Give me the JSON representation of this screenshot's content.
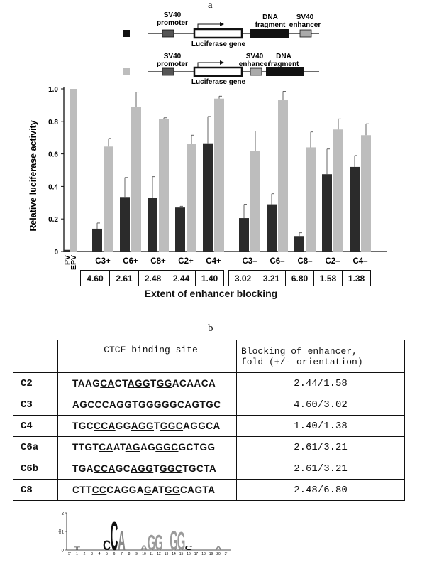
{
  "figure": {
    "panel_a_label": "a",
    "panel_b_label": "b"
  },
  "constructs": {
    "top": {
      "promoter": [
        "SV40",
        "promoter"
      ],
      "gene": "Luciferase gene",
      "fragment": [
        "DNA",
        "fragment"
      ],
      "enhancer": [
        "SV40",
        "enhancer"
      ],
      "legend_color": "#222222"
    },
    "bottom": {
      "promoter": [
        "SV40",
        "promoter"
      ],
      "gene": "Luciferase gene",
      "enhancer": [
        "SV40",
        "enhancer"
      ],
      "fragment": [
        "DNA",
        "fragment"
      ],
      "legend_color": "#bdbdbd"
    }
  },
  "chart_data": {
    "type": "bar",
    "ylabel": "Relative luciferase activity",
    "xlabel": "Extent of enhancer blocking",
    "ylim": [
      0,
      1.0
    ],
    "yticks": [
      "0",
      "0.2",
      "0.4",
      "0.6",
      "0.8",
      "1.0"
    ],
    "grid": false,
    "controls": [
      {
        "label": "PV",
        "value": 0.01,
        "series": "dark"
      },
      {
        "label": "EPV",
        "value": 1.0,
        "series": "light"
      }
    ],
    "categories": [
      "C3+",
      "C6+",
      "C8+",
      "C2+",
      "C4+",
      "C3–",
      "C6–",
      "C8–",
      "C2–",
      "C4–"
    ],
    "series": [
      {
        "values": [
          0.14,
          0.335,
          0.33,
          0.27,
          0.665,
          0.205,
          0.29,
          0.095,
          0.475,
          0.52
        ],
        "errors": [
          0.035,
          0.12,
          0.13,
          0.008,
          0.165,
          0.085,
          0.065,
          0.02,
          0.155,
          0.07
        ]
      },
      {
        "values": [
          0.645,
          0.89,
          0.815,
          0.66,
          0.94,
          0.62,
          0.93,
          0.64,
          0.75,
          0.715
        ],
        "errors": [
          0.05,
          0.09,
          0.007,
          0.055,
          0.015,
          0.12,
          0.055,
          0.095,
          0.065,
          0.07
        ]
      }
    ],
    "colors": {
      "dark": "#2b2b2b",
      "light": "#bdbdbd"
    },
    "blocking_values": [
      "4.60",
      "2.61",
      "2.48",
      "2.44",
      "1.40",
      "3.02",
      "3.21",
      "6.80",
      "1.58",
      "1.38"
    ]
  },
  "table_b": {
    "headers": [
      "",
      "CTCF binding site",
      "Blocking of enhancer,\nfold  (+/- orientation)"
    ],
    "rows": [
      {
        "name": "C2",
        "seq": [
          [
            "TAAG",
            0
          ],
          [
            "CA",
            1
          ],
          [
            "CT",
            0
          ],
          [
            "AGG",
            1
          ],
          [
            "T",
            0
          ],
          [
            "GG",
            1
          ],
          [
            "ACAACA",
            0
          ]
        ],
        "fold": "2.44/1.58"
      },
      {
        "name": "C3",
        "seq": [
          [
            "AGC",
            0
          ],
          [
            "CCA",
            1
          ],
          [
            "GGT",
            0
          ],
          [
            "GG",
            1
          ],
          [
            "G",
            0
          ],
          [
            "GGC",
            1
          ],
          [
            "AGTGC",
            0
          ]
        ],
        "fold": "4.60/3.02"
      },
      {
        "name": "C4",
        "seq": [
          [
            "TGC",
            0
          ],
          [
            "CCA",
            1
          ],
          [
            "GG",
            0
          ],
          [
            "AGG",
            1
          ],
          [
            "T",
            0
          ],
          [
            "GGC",
            1
          ],
          [
            "AGGCA",
            0
          ]
        ],
        "fold": "1.40/1.38"
      },
      {
        "name": "C6a",
        "seq": [
          [
            "TTGT",
            0
          ],
          [
            "CA",
            1
          ],
          [
            "AT",
            0
          ],
          [
            "AG",
            1
          ],
          [
            "AG",
            0
          ],
          [
            "GGC",
            1
          ],
          [
            "GCTGG",
            0
          ]
        ],
        "fold": "2.61/3.21"
      },
      {
        "name": "C6b",
        "seq": [
          [
            "TGA",
            0
          ],
          [
            "CCA",
            1
          ],
          [
            "GC",
            0
          ],
          [
            "AGG",
            1
          ],
          [
            "T",
            0
          ],
          [
            "GGC",
            1
          ],
          [
            "TGCTA",
            0
          ]
        ],
        "fold": "2.61/3.21"
      },
      {
        "name": "C8",
        "seq": [
          [
            "CTT",
            0
          ],
          [
            "CC",
            1
          ],
          [
            "CAGGA",
            0
          ],
          [
            "G",
            1
          ],
          [
            "AT",
            0
          ],
          [
            "GG",
            1
          ],
          [
            "CAGTA",
            0
          ]
        ],
        "fold": "2.48/6.80"
      }
    ]
  },
  "logo": {
    "ylabel": "bits",
    "yticks": [
      "0",
      "1",
      "2"
    ],
    "letters": [
      {
        "pos": 1,
        "ch": "T",
        "h": 0.18
      },
      {
        "pos": 5,
        "ch": "C",
        "h": 0.55
      },
      {
        "pos": 6,
        "ch": "C",
        "h": 1.6
      },
      {
        "pos": 7,
        "ch": "A",
        "h": 1.1
      },
      {
        "pos": 10,
        "ch": "A",
        "h": 0.25
      },
      {
        "pos": 11,
        "ch": "G",
        "h": 0.85
      },
      {
        "pos": 12,
        "ch": "G",
        "h": 0.85
      },
      {
        "pos": 14,
        "ch": "G",
        "h": 1.1
      },
      {
        "pos": 15,
        "ch": "G",
        "h": 1.0
      },
      {
        "pos": 16,
        "ch": "C",
        "h": 0.22
      },
      {
        "pos": 20,
        "ch": "A",
        "h": 0.2
      }
    ],
    "positions": [
      "5'",
      "1",
      "2",
      "3",
      "4",
      "5",
      "6",
      "7",
      "8",
      "9",
      "10",
      "11",
      "12",
      "13",
      "14",
      "15",
      "16",
      "17",
      "18",
      "19",
      "20",
      "3'"
    ]
  }
}
